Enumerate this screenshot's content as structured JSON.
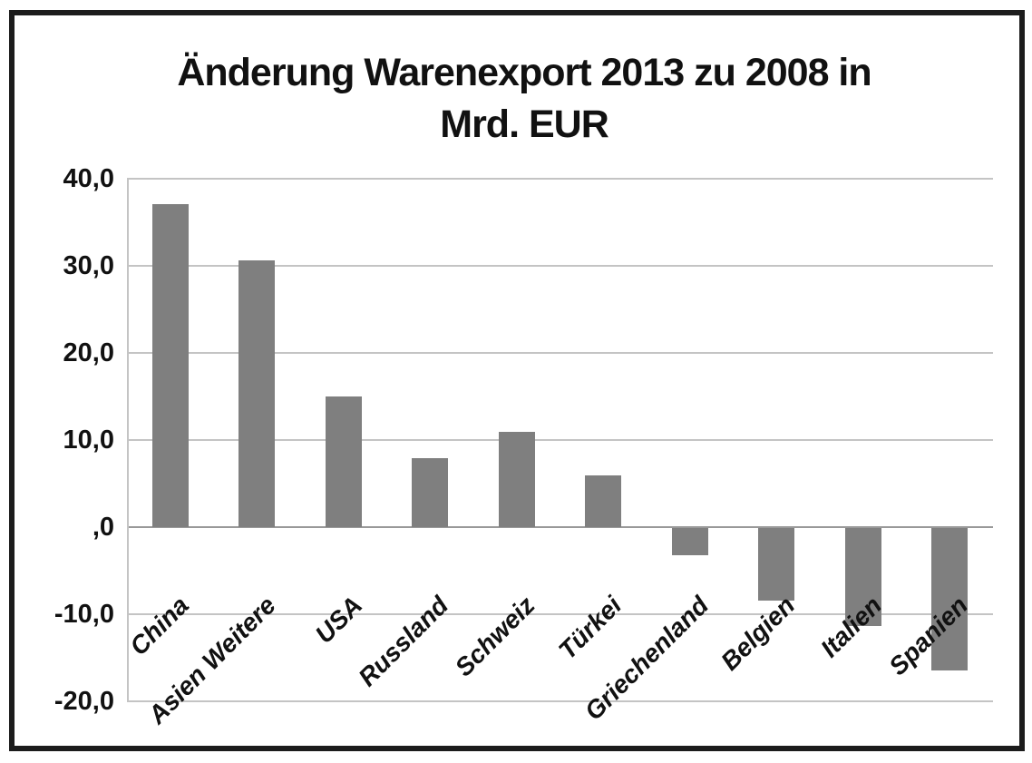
{
  "chart_data": {
    "type": "bar",
    "title": "Änderung Warenexport 2013 zu 2008 in Mrd. EUR",
    "title_lines": [
      "Änderung Warenexport 2013 zu 2008 in",
      "Mrd. EUR"
    ],
    "categories": [
      "China",
      "Asien Weitere",
      "USA",
      "Russland",
      "Schweiz",
      "Türkei",
      "Griechenland",
      "Belgien",
      "Italien",
      "Spanien"
    ],
    "values": [
      37.1,
      30.6,
      15.0,
      7.9,
      10.9,
      5.9,
      -3.1,
      -8.3,
      -11.2,
      -16.4
    ],
    "series_name": "Änderung Warenexport 2013 zu 2008",
    "unit": "Mrd. EUR",
    "xlabel": "",
    "ylabel": "",
    "ylim": [
      -20,
      40
    ],
    "ytick_step": 10,
    "ytick_labels": [
      "40,0",
      "30,0",
      "20,0",
      "10,0",
      ",0",
      "-10,0",
      "-20,0"
    ],
    "grid": true,
    "legend": false,
    "bar_orientation": "vertical",
    "category_label_rotation_deg": -45,
    "colors": {
      "bar": "#7f7f7f",
      "gridline": "#c4c4c4",
      "zero_line": "#999999",
      "text": "#111111",
      "frame_border": "#1c1c1c",
      "background": "#ffffff"
    }
  }
}
